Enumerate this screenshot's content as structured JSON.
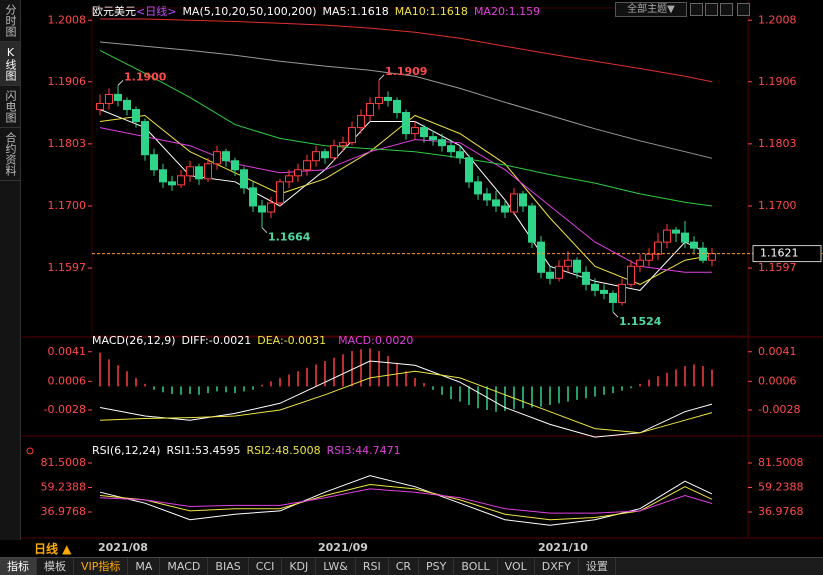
{
  "sidebar": [
    "分时图",
    "K线图",
    "闪电图",
    "合约资料"
  ],
  "toolbar": {
    "theme": "全部主题▼"
  },
  "period": "日线 ▲",
  "dates": [
    "2021/08",
    "2021/09",
    "2021/10"
  ],
  "bottom_tabs": [
    "指标",
    "模板",
    "VIP指标",
    "MA",
    "MACD",
    "BIAS",
    "CCI",
    "KDJ",
    "LW&",
    "RSI",
    "CR",
    "PSY",
    "BOLL",
    "VOL",
    "DXFY",
    "设置"
  ],
  "chart_data": [
    {
      "type": "candlestick",
      "title": "欧元美元",
      "subtitle": "<日线>",
      "indicator": "MA(5,10,20,50,100,200)",
      "ylim": [
        1.1486,
        1.2025
      ],
      "yticks": [
        1.2008,
        1.1906,
        1.1803,
        {
          "value": 1.17,
          "label": "1.1700"
        },
        1.1597
      ],
      "up_color": "#ff3d3d",
      "down_color": "#2fd38a",
      "last_price": 1.1621,
      "annotations": [
        {
          "value": 1.19,
          "label": "1.1900"
        },
        1.1909,
        1.1664,
        1.1524
      ],
      "candles": [
        [
          1.186,
          1.1885,
          1.185,
          1.187
        ],
        [
          1.187,
          1.1895,
          1.186,
          1.1885
        ],
        [
          1.1885,
          1.19,
          1.1865,
          1.1875
        ],
        [
          1.1875,
          1.188,
          1.185,
          1.186
        ],
        [
          1.186,
          1.1865,
          1.183,
          1.184
        ],
        [
          1.184,
          1.1845,
          1.1775,
          1.1785
        ],
        [
          1.1785,
          1.1795,
          1.175,
          1.176
        ],
        [
          1.176,
          1.177,
          1.173,
          1.174
        ],
        [
          1.174,
          1.175,
          1.1725,
          1.1735
        ],
        [
          1.1735,
          1.176,
          1.173,
          1.175
        ],
        [
          1.175,
          1.1775,
          1.174,
          1.1765
        ],
        [
          1.1765,
          1.177,
          1.1735,
          1.1745
        ],
        [
          1.1745,
          1.178,
          1.174,
          1.177
        ],
        [
          1.177,
          1.18,
          1.176,
          1.179
        ],
        [
          1.179,
          1.1795,
          1.1765,
          1.1775
        ],
        [
          1.1775,
          1.178,
          1.175,
          1.176
        ],
        [
          1.176,
          1.1765,
          1.172,
          1.173
        ],
        [
          1.173,
          1.174,
          1.169,
          1.17
        ],
        [
          1.17,
          1.171,
          1.1664,
          1.169
        ],
        [
          1.169,
          1.1715,
          1.168,
          1.1705
        ],
        [
          1.1705,
          1.1745,
          1.17,
          1.174
        ],
        [
          1.174,
          1.176,
          1.173,
          1.175
        ],
        [
          1.175,
          1.177,
          1.174,
          1.176
        ],
        [
          1.176,
          1.1785,
          1.175,
          1.1775
        ],
        [
          1.1775,
          1.18,
          1.1765,
          1.179
        ],
        [
          1.179,
          1.1795,
          1.177,
          1.178
        ],
        [
          1.178,
          1.181,
          1.1775,
          1.18
        ],
        [
          1.18,
          1.1815,
          1.179,
          1.1805
        ],
        [
          1.1805,
          1.184,
          1.18,
          1.183
        ],
        [
          1.183,
          1.186,
          1.182,
          1.185
        ],
        [
          1.185,
          1.188,
          1.184,
          1.187
        ],
        [
          1.187,
          1.1909,
          1.186,
          1.188
        ],
        [
          1.188,
          1.189,
          1.1865,
          1.1875
        ],
        [
          1.1875,
          1.188,
          1.1845,
          1.1855
        ],
        [
          1.1855,
          1.186,
          1.181,
          1.182
        ],
        [
          1.182,
          1.184,
          1.181,
          1.183
        ],
        [
          1.183,
          1.1835,
          1.1805,
          1.1815
        ],
        [
          1.1815,
          1.1825,
          1.18,
          1.181
        ],
        [
          1.181,
          1.182,
          1.179,
          1.18
        ],
        [
          1.18,
          1.181,
          1.178,
          1.179
        ],
        [
          1.179,
          1.18,
          1.177,
          1.178
        ],
        [
          1.178,
          1.1785,
          1.173,
          1.174
        ],
        [
          1.174,
          1.175,
          1.171,
          1.172
        ],
        [
          1.172,
          1.173,
          1.17,
          1.171
        ],
        [
          1.171,
          1.1725,
          1.169,
          1.17
        ],
        [
          1.17,
          1.171,
          1.168,
          1.169
        ],
        [
          1.169,
          1.173,
          1.1685,
          1.172
        ],
        [
          1.172,
          1.1725,
          1.169,
          1.17
        ],
        [
          1.17,
          1.1705,
          1.163,
          1.164
        ],
        [
          1.164,
          1.165,
          1.158,
          1.159
        ],
        [
          1.159,
          1.16,
          1.157,
          1.158
        ],
        [
          1.158,
          1.161,
          1.1575,
          1.16
        ],
        [
          1.16,
          1.1625,
          1.159,
          1.161
        ],
        [
          1.161,
          1.1615,
          1.158,
          1.159
        ],
        [
          1.159,
          1.16,
          1.156,
          1.157
        ],
        [
          1.157,
          1.158,
          1.155,
          1.156
        ],
        [
          1.156,
          1.157,
          1.1545,
          1.1555
        ],
        [
          1.1555,
          1.156,
          1.1524,
          1.154
        ],
        [
          1.154,
          1.158,
          1.1535,
          1.157
        ],
        [
          1.157,
          1.161,
          1.1565,
          1.16
        ],
        [
          1.16,
          1.162,
          1.159,
          1.161
        ],
        [
          1.161,
          1.163,
          1.16,
          1.162
        ],
        [
          1.162,
          1.1655,
          1.161,
          1.164
        ],
        [
          1.164,
          1.167,
          1.163,
          1.166
        ],
        [
          1.166,
          1.1665,
          1.164,
          1.1655
        ],
        [
          1.1655,
          1.1675,
          1.163,
          1.164
        ],
        [
          1.164,
          1.165,
          1.162,
          1.163
        ],
        [
          1.163,
          1.164,
          1.1605,
          1.161
        ],
        [
          1.161,
          1.163,
          1.16,
          1.1621
        ]
      ],
      "x": [
        0,
        5,
        10,
        15,
        20,
        25,
        30,
        35,
        40,
        45,
        50,
        55,
        60,
        65,
        68
      ],
      "series": [
        {
          "name": "MA5:1.1618",
          "color": "#ffffff",
          "values": [
            1.186,
            1.183,
            1.175,
            1.174,
            1.17,
            1.176,
            1.184,
            1.184,
            1.18,
            1.171,
            1.16,
            1.1575,
            1.156,
            1.164,
            1.1618
          ]
        },
        {
          "name": "MA10:1.1618",
          "color": "#f0e442",
          "values": [
            1.184,
            1.185,
            1.179,
            1.1755,
            1.172,
            1.1745,
            1.179,
            1.185,
            1.182,
            1.177,
            1.168,
            1.16,
            1.157,
            1.161,
            1.1618
          ]
        },
        {
          "name": "MA20:1.159",
          "color": "#e040e0",
          "values": [
            1.183,
            1.1815,
            1.18,
            1.177,
            1.1755,
            1.176,
            1.179,
            1.181,
            1.1805,
            1.176,
            1.17,
            1.164,
            1.16,
            1.159,
            1.159
          ]
        },
        {
          "color": "#2ecc40",
          "values": [
            1.1958,
            1.192,
            1.188,
            1.1835,
            1.1812,
            1.18,
            1.1795,
            1.179,
            1.178,
            1.1768,
            1.1752,
            1.1738,
            1.172,
            1.1706,
            1.17
          ]
        },
        {
          "color": "#9a9a9a",
          "values": [
            1.1972,
            1.1965,
            1.1958,
            1.195,
            1.194,
            1.1932,
            1.1925,
            1.1915,
            1.1895,
            1.1872,
            1.185,
            1.1828,
            1.1808,
            1.179,
            1.1779
          ]
        },
        {
          "color": "#e0302a",
          "values": [
            1.201,
            1.201,
            1.2008,
            1.2006,
            1.2003,
            1.2,
            1.1995,
            1.1988,
            1.1978,
            1.1965,
            1.1952,
            1.194,
            1.1928,
            1.1915,
            1.1906
          ]
        }
      ]
    },
    {
      "type": "macd",
      "title": "MACD(26,12,9)",
      "ylim": [
        -0.0054,
        0.0049
      ],
      "yticks": [
        0.0041,
        0.0006,
        -0.0028
      ],
      "up_color": "#ff3d3d",
      "down_color": "#2fd38a",
      "bars": [
        0.004,
        0.0032,
        0.0025,
        0.0018,
        0.001,
        0.0003,
        -0.0004,
        -0.0007,
        -0.0009,
        -0.001,
        -0.0009,
        -0.001,
        -0.0008,
        -0.0006,
        -0.0007,
        -0.0008,
        -0.0006,
        -0.0004,
        0.0002,
        0.0006,
        0.001,
        0.0014,
        0.0018,
        0.0022,
        0.0026,
        0.003,
        0.0034,
        0.0038,
        0.0042,
        0.0044,
        0.0045,
        0.0042,
        0.0036,
        0.0028,
        0.0018,
        0.001,
        0.0004,
        -0.0004,
        -0.001,
        -0.0015,
        -0.0018,
        -0.0022,
        -0.0026,
        -0.0028,
        -0.003,
        -0.0029,
        -0.0027,
        -0.0026,
        -0.0025,
        -0.0024,
        -0.0022,
        -0.002,
        -0.0018,
        -0.0016,
        -0.0014,
        -0.0012,
        -0.001,
        -0.0008,
        -0.0005,
        -0.0002,
        0.0003,
        0.0008,
        0.0012,
        0.0016,
        0.002,
        0.0024,
        0.0026,
        0.0024,
        0.002
      ],
      "bars_name": "MACD:0.0020",
      "bars_label_color": "#e040e0",
      "x": [
        0,
        5,
        10,
        15,
        20,
        25,
        30,
        35,
        40,
        45,
        50,
        55,
        60,
        65,
        68
      ],
      "series": [
        {
          "name": "DIFF:-0.0021",
          "color": "#ffffff",
          "values": [
            -0.0025,
            -0.0035,
            -0.004,
            -0.0032,
            -0.002,
            0.0005,
            0.003,
            0.0025,
            0.0005,
            -0.0025,
            -0.0045,
            -0.006,
            -0.0055,
            -0.003,
            -0.0021
          ]
        },
        {
          "name": "DEA:-0.0031",
          "color": "#f0e442",
          "values": [
            -0.004,
            -0.0038,
            -0.0037,
            -0.0035,
            -0.0028,
            -0.001,
            0.001,
            0.0018,
            0.001,
            -0.001,
            -0.003,
            -0.005,
            -0.0055,
            -0.004,
            -0.0031
          ]
        }
      ]
    },
    {
      "type": "line",
      "title": "RSI(6,12,24)",
      "ylim": [
        16.08,
        88.77
      ],
      "yticks": [
        81.5008,
        59.2388,
        36.9768
      ],
      "x": [
        0,
        5,
        10,
        15,
        20,
        25,
        30,
        35,
        40,
        45,
        50,
        55,
        60,
        65,
        68
      ],
      "series": [
        {
          "name": "RSI1:53.4595",
          "color": "#ffffff",
          "values": [
            55,
            45,
            30,
            35,
            38,
            55,
            70,
            60,
            45,
            30,
            25,
            30,
            40,
            65,
            53.4595
          ]
        },
        {
          "name": "RSI2:48.5008",
          "color": "#f0e442",
          "values": [
            52,
            48,
            38,
            40,
            40,
            52,
            62,
            58,
            48,
            35,
            30,
            32,
            38,
            60,
            48.5008
          ]
        },
        {
          "name": "RSI3:44.7471",
          "color": "#e040e0",
          "values": [
            50,
            48,
            42,
            43,
            43,
            50,
            58,
            55,
            50,
            40,
            36,
            36,
            38,
            52,
            44.7471
          ]
        }
      ]
    }
  ]
}
